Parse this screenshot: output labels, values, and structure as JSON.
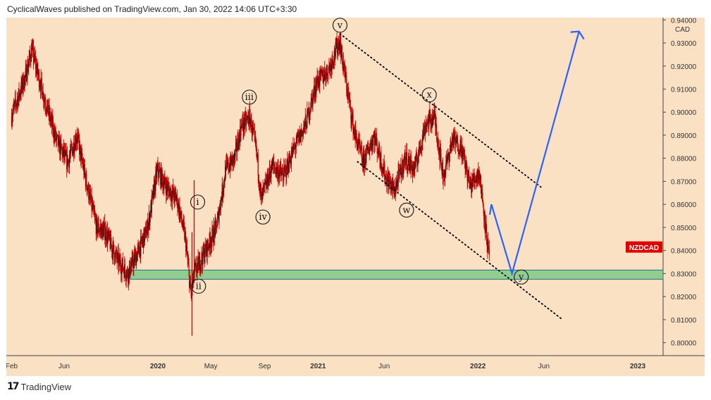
{
  "header": {
    "text": "CyclicalWaves published on TradingView.com, Jan 30, 2022 14:06 UTC+3:30"
  },
  "footer": {
    "logo_glyph": "17",
    "brand": "TradingView"
  },
  "chart_data": {
    "type": "candlestick",
    "symbol": "NZDCAD",
    "currency": "CAD",
    "price_label": "NZDCAD",
    "ylim": [
      0.795,
      0.941
    ],
    "y_ticks": [
      "0.94000",
      "0.93000",
      "0.92000",
      "0.91000",
      "0.90000",
      "0.89000",
      "0.88000",
      "0.87000",
      "0.86000",
      "0.85000",
      "0.84000",
      "0.83000",
      "0.82000",
      "0.81000",
      "0.80000"
    ],
    "x_ticks": [
      "Feb",
      "Jun",
      "2020",
      "May",
      "Sep",
      "2021",
      "Jun",
      "2022",
      "Jun",
      "2023"
    ],
    "price_path": [
      [
        "2019-02-01",
        0.898
      ],
      [
        "2019-03-05",
        0.915
      ],
      [
        "2019-03-20",
        0.927
      ],
      [
        "2019-04-15",
        0.908
      ],
      [
        "2019-05-15",
        0.888
      ],
      [
        "2019-06-10",
        0.878
      ],
      [
        "2019-07-01",
        0.89
      ],
      [
        "2019-07-20",
        0.872
      ],
      [
        "2019-08-15",
        0.85
      ],
      [
        "2019-09-05",
        0.848
      ],
      [
        "2019-10-01",
        0.836
      ],
      [
        "2019-10-25",
        0.83
      ],
      [
        "2019-11-20",
        0.84
      ],
      [
        "2019-12-10",
        0.85
      ],
      [
        "2020-01-01",
        0.875
      ],
      [
        "2020-01-20",
        0.868
      ],
      [
        "2020-02-15",
        0.862
      ],
      [
        "2020-03-05",
        0.845
      ],
      [
        "2020-03-18",
        0.82
      ],
      [
        "2020-03-25",
        0.83
      ],
      [
        "2020-04-20",
        0.84
      ],
      [
        "2020-05-15",
        0.85
      ],
      [
        "2020-06-05",
        0.875
      ],
      [
        "2020-06-25",
        0.88
      ],
      [
        "2020-07-10",
        0.893
      ],
      [
        "2020-07-30",
        0.898
      ],
      [
        "2020-08-15",
        0.882
      ],
      [
        "2020-08-25",
        0.862
      ],
      [
        "2020-09-20",
        0.877
      ],
      [
        "2020-10-15",
        0.872
      ],
      [
        "2020-11-10",
        0.885
      ],
      [
        "2020-12-05",
        0.895
      ],
      [
        "2020-12-30",
        0.913
      ],
      [
        "2021-01-25",
        0.918
      ],
      [
        "2021-02-20",
        0.931
      ],
      [
        "2021-03-05",
        0.915
      ],
      [
        "2021-03-25",
        0.892
      ],
      [
        "2021-04-15",
        0.878
      ],
      [
        "2021-05-10",
        0.89
      ],
      [
        "2021-06-05",
        0.872
      ],
      [
        "2021-06-25",
        0.866
      ],
      [
        "2021-07-20",
        0.88
      ],
      [
        "2021-08-10",
        0.875
      ],
      [
        "2021-09-05",
        0.895
      ],
      [
        "2021-09-25",
        0.898
      ],
      [
        "2021-10-15",
        0.872
      ],
      [
        "2021-11-05",
        0.888
      ],
      [
        "2021-11-25",
        0.885
      ],
      [
        "2021-12-15",
        0.868
      ],
      [
        "2022-01-05",
        0.874
      ],
      [
        "2022-01-15",
        0.858
      ],
      [
        "2022-01-28",
        0.836
      ]
    ],
    "support_zone": [
      0.8275,
      0.8315
    ],
    "channel_lines": [
      {
        "name": "upper",
        "points": [
          [
            "2021-02-20",
            0.934
          ],
          [
            "2022-05-25",
            0.8675
          ]
        ]
      },
      {
        "name": "lower",
        "points": [
          [
            "2021-04-01",
            0.8785
          ],
          [
            "2022-07-10",
            0.8105
          ]
        ]
      }
    ],
    "projection": [
      [
        "2022-01-28",
        0.8555
      ],
      [
        "2022-02-01",
        0.86
      ],
      [
        "2022-03-20",
        0.83
      ],
      [
        "2022-08-20",
        0.935
      ]
    ],
    "wave_labels": [
      {
        "text": "v",
        "date": "2021-02-20",
        "price": 0.9377
      },
      {
        "text": "x",
        "date": "2021-09-12",
        "price": 0.9075
      },
      {
        "text": "iii",
        "date": "2020-07-28",
        "price": 0.9065
      },
      {
        "text": "i",
        "date": "2020-04-01",
        "price": 0.861
      },
      {
        "text": "iv",
        "date": "2020-08-28",
        "price": 0.8545
      },
      {
        "text": "w",
        "date": "2021-07-22",
        "price": 0.8575
      },
      {
        "text": "ii",
        "date": "2020-04-03",
        "price": 0.8245
      },
      {
        "text": "y",
        "date": "2022-04-10",
        "price": 0.8285
      }
    ],
    "colors": {
      "candles": "#c20000",
      "background": "#fae1c4",
      "support_fill": "#8fce8f",
      "support_edge": "#2e6b8a",
      "projection": "#2962ff",
      "channel": "#000000",
      "price_label_bg": "#e00000"
    }
  }
}
